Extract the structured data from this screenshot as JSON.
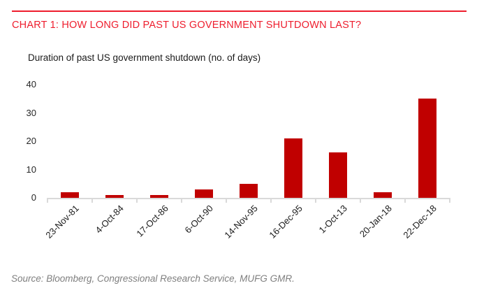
{
  "header": {
    "title": "CHART 1: HOW LONG DID PAST US GOVERNMENT SHUTDOWN LAST?"
  },
  "chart_data": {
    "type": "bar",
    "title": "Duration of past US government shutdown (no. of days)",
    "categories": [
      "23-Nov-81",
      "4-Oct-84",
      "17-Oct-86",
      "6-Oct-90",
      "14-Nov-95",
      "16-Dec-95",
      "1-Oct-13",
      "20-Jan-18",
      "22-Dec-18"
    ],
    "values": [
      2,
      1,
      1,
      3,
      5,
      21,
      16,
      2,
      35
    ],
    "xlabel": "",
    "ylabel": "",
    "ylim": [
      0,
      40
    ],
    "yticks": [
      0,
      10,
      20,
      30,
      40
    ],
    "grid": false,
    "legend": false,
    "bar_color": "#c00000",
    "axis_color": "#d9d9d9"
  },
  "footer": {
    "source": "Source: Bloomberg, Congressional Research Service, MUFG GMR."
  },
  "colors": {
    "accent_red": "#ee1d2d",
    "bar_red": "#c00000",
    "axis_gray": "#d9d9d9",
    "source_gray": "#7f7f7f",
    "text_dark": "#262626"
  }
}
